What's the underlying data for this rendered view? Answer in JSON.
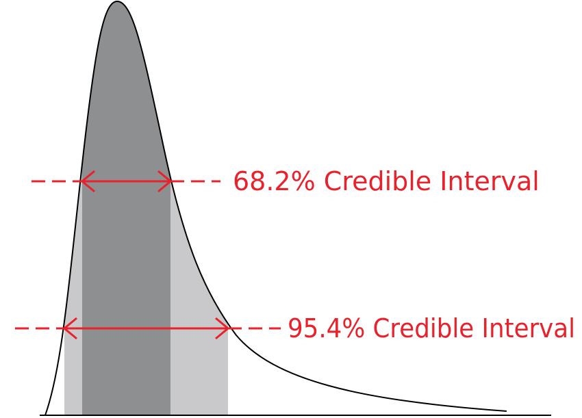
{
  "colors": {
    "curve": "#000000",
    "inner_band": "#8e8f91",
    "outer_band": "#c9c9cb",
    "annotation": "#e8212b",
    "background": "#ffffff"
  },
  "intervals": {
    "inner": {
      "label": "68.2% Credible Interval"
    },
    "outer": {
      "label": "95.4% Credible Interval"
    }
  }
}
